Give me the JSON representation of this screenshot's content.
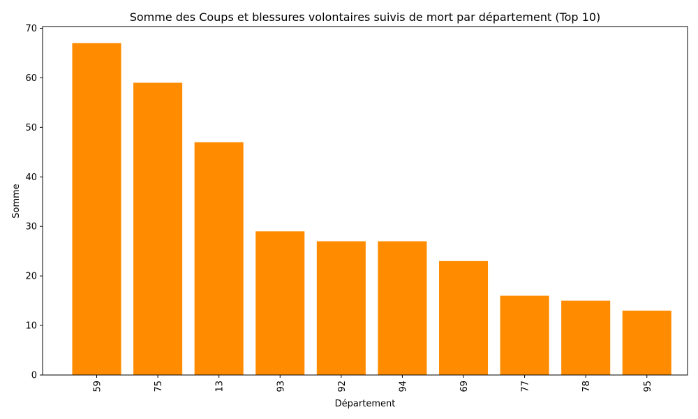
{
  "chart_data": {
    "type": "bar",
    "title": "Somme des Coups et blessures volontaires suivis de mort par département (Top 10)",
    "xlabel": "Département",
    "ylabel": "Somme",
    "categories": [
      "59",
      "75",
      "13",
      "93",
      "92",
      "94",
      "69",
      "77",
      "78",
      "95"
    ],
    "values": [
      67,
      59,
      47,
      29,
      27,
      27,
      23,
      16,
      15,
      13
    ],
    "ylim": [
      0,
      70.35
    ],
    "yticks": [
      0,
      10,
      20,
      30,
      40,
      50,
      60,
      70
    ],
    "xtick_rotation": "vertical",
    "grid": false,
    "legend": "none",
    "bar_color": "#ff8c00"
  }
}
